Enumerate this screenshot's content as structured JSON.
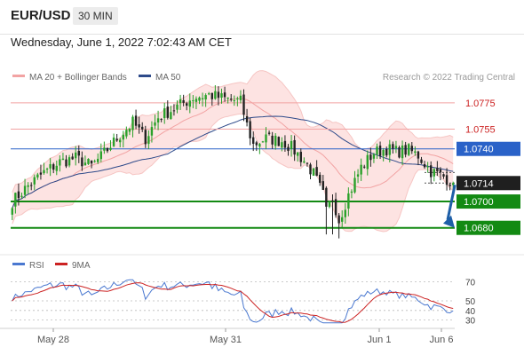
{
  "header": {
    "symbol": "EUR/USD",
    "interval": "30 MIN",
    "datetime": "Wednesday, June 1, 2022 7:02:43 AM CET"
  },
  "legend": {
    "bollinger": "MA 20 + Bollinger Bands",
    "ma50": "MA 50",
    "credit": "Research © 2022 Trading Central",
    "rsi": "RSI",
    "rsi_ma": "9MA"
  },
  "colors": {
    "bollinger": "#f2a3a3",
    "bollinger_fill": "#fde3e2",
    "ma50": "#2e4a8a",
    "resistance": "#f2a3a3",
    "resistance_label": "#cc2222",
    "pivot": "#2a62c8",
    "support": "#138a13",
    "candle_up": "#2aa12a",
    "candle_down": "#222222",
    "rsi": "#4a78d0",
    "rsi_ma": "#cc2222",
    "forecast_arrow": "#1e5fa8"
  },
  "chart_data": [
    {
      "type": "candlestick",
      "title": "EUR/USD",
      "interval": "30 MIN",
      "x_ticks": [
        "May 28",
        "May 31",
        "Jun 1",
        "Jun 6"
      ],
      "ylim": [
        1.0667,
        1.0785
      ],
      "levels": [
        {
          "value": 1.0775,
          "label": "1.0775",
          "kind": "resistance"
        },
        {
          "value": 1.0755,
          "label": "1.0755",
          "kind": "resistance"
        },
        {
          "value": 1.074,
          "label": "1.0740",
          "kind": "pivot"
        },
        {
          "value": 1.0714,
          "label": "1.0714",
          "kind": "last"
        },
        {
          "value": 1.07,
          "label": "1.0700",
          "kind": "support"
        },
        {
          "value": 1.068,
          "label": "1.0680",
          "kind": "support"
        }
      ],
      "series": [
        {
          "name": "MA 20 + Bollinger Bands",
          "kind": "bollinger"
        },
        {
          "name": "MA 50",
          "kind": "ma"
        }
      ],
      "price_path": [
        [
          0,
          1.07
        ],
        [
          5,
          1.0712
        ],
        [
          10,
          1.0722
        ],
        [
          15,
          1.073
        ],
        [
          20,
          1.0733
        ],
        [
          25,
          1.0727
        ],
        [
          28,
          1.0734
        ],
        [
          33,
          1.0748
        ],
        [
          38,
          1.076
        ],
        [
          42,
          1.0748
        ],
        [
          46,
          1.0764
        ],
        [
          52,
          1.0772
        ],
        [
          57,
          1.0779
        ],
        [
          62,
          1.0781
        ],
        [
          67,
          1.0778
        ],
        [
          72,
          1.0776
        ],
        [
          74,
          1.0758
        ],
        [
          76,
          1.0743
        ],
        [
          80,
          1.0748
        ],
        [
          85,
          1.0746
        ],
        [
          88,
          1.0741
        ],
        [
          92,
          1.0731
        ],
        [
          95,
          1.0721
        ],
        [
          98,
          1.0705
        ],
        [
          99,
          1.0692
        ],
        [
          101,
          1.0703
        ],
        [
          103,
          1.0686
        ],
        [
          106,
          1.0705
        ],
        [
          110,
          1.0726
        ],
        [
          114,
          1.0737
        ],
        [
          118,
          1.074
        ],
        [
          121,
          1.0738
        ],
        [
          125,
          1.0739
        ],
        [
          128,
          1.0735
        ],
        [
          132,
          1.0723
        ],
        [
          136,
          1.0719
        ],
        [
          139,
          1.0714
        ]
      ],
      "forecast": {
        "from": 1.0714,
        "to": 1.068
      }
    },
    {
      "type": "line",
      "title": "RSI",
      "ylim": [
        25,
        75
      ],
      "y_ticks": [
        70,
        50,
        40,
        30
      ],
      "series": [
        {
          "name": "RSI",
          "kind": "rsi"
        },
        {
          "name": "9MA",
          "kind": "rsi_ma"
        }
      ]
    }
  ]
}
